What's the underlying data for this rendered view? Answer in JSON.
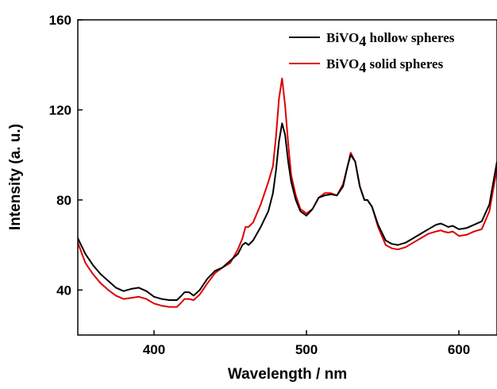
{
  "chart_data": {
    "type": "line",
    "xlabel": "Wavelength / nm",
    "ylabel": "Intensity (a. u.)",
    "xlim": [
      350,
      625
    ],
    "ylim": [
      20,
      160
    ],
    "xticks": [
      400,
      500,
      600
    ],
    "yticks": [
      40,
      80,
      120,
      160
    ],
    "grid": false,
    "legend_position": "top-right",
    "series": [
      {
        "name_prefix": "BiVO",
        "name_sub": "4",
        "name_suffix": " hollow spheres",
        "name": "BiVO4 hollow spheres",
        "color": "#000000",
        "x": [
          350,
          355,
          360,
          365,
          370,
          375,
          380,
          385,
          390,
          395,
          400,
          405,
          410,
          415,
          418,
          420,
          423,
          426,
          430,
          435,
          440,
          445,
          450,
          455,
          458,
          460,
          462,
          465,
          470,
          475,
          478,
          480,
          482,
          484,
          486,
          488,
          490,
          493,
          496,
          500,
          504,
          508,
          512,
          516,
          520,
          524,
          527,
          529,
          532,
          535,
          538,
          540,
          543,
          547,
          552,
          556,
          560,
          565,
          570,
          575,
          580,
          585,
          588,
          590,
          593,
          596,
          600,
          605,
          610,
          615,
          620,
          625
        ],
        "y": [
          63,
          56,
          51,
          47,
          44,
          41,
          39.5,
          40.5,
          41,
          39.5,
          37,
          36,
          35.5,
          35.5,
          37.5,
          39,
          39,
          37.5,
          40,
          45,
          48.5,
          50,
          53,
          56,
          60,
          61,
          60,
          62,
          68,
          75,
          83,
          93,
          106,
          114,
          109,
          97,
          88,
          80,
          75,
          73,
          76,
          81,
          82,
          82.5,
          82,
          86,
          95,
          100,
          97,
          86,
          80,
          80,
          77,
          69,
          62,
          60.5,
          60,
          61,
          63,
          65,
          67,
          69,
          69.5,
          69,
          68,
          68.5,
          67,
          67.5,
          69,
          70.5,
          78,
          97
        ]
      },
      {
        "name_prefix": "BiVO",
        "name_sub": "4",
        "name_suffix": " solid spheres",
        "name": "BiVO4 solid spheres",
        "color": "#dd0000",
        "x": [
          350,
          355,
          360,
          365,
          370,
          375,
          380,
          385,
          390,
          395,
          400,
          405,
          410,
          415,
          418,
          420,
          423,
          426,
          430,
          435,
          440,
          445,
          450,
          455,
          458,
          460,
          462,
          465,
          470,
          475,
          478,
          480,
          482,
          484,
          486,
          488,
          490,
          493,
          496,
          500,
          504,
          508,
          512,
          516,
          520,
          524,
          527,
          529,
          532,
          535,
          538,
          540,
          543,
          547,
          552,
          556,
          560,
          565,
          570,
          575,
          580,
          585,
          588,
          590,
          593,
          596,
          600,
          605,
          610,
          615,
          620,
          625
        ],
        "y": [
          61,
          52,
          47,
          43,
          40,
          37.5,
          36,
          36.5,
          37,
          36,
          34,
          33,
          32.5,
          32.5,
          34.5,
          36,
          36,
          35.5,
          38,
          43,
          47.5,
          50,
          52,
          58,
          63,
          68,
          68,
          70,
          78,
          88,
          95,
          108,
          125,
          134,
          122,
          105,
          91,
          82,
          76,
          74,
          76,
          81,
          83,
          83,
          82,
          87,
          95,
          101,
          97,
          86,
          80,
          80,
          77,
          68,
          60,
          58.5,
          58,
          59,
          61,
          63,
          65,
          66,
          66.5,
          66,
          65.5,
          66,
          64,
          64.5,
          66,
          67,
          75,
          94
        ]
      }
    ]
  }
}
